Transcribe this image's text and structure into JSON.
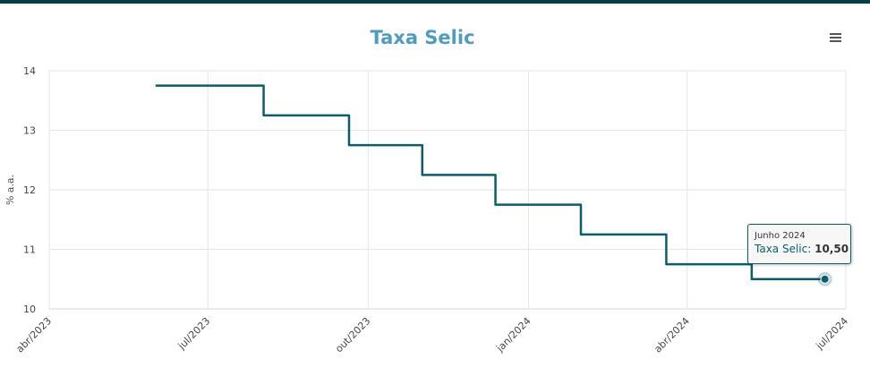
{
  "header": {
    "title": "Taxa Selic",
    "menu_icon": "hamburger-icon"
  },
  "colors": {
    "line": "#0b5c6d",
    "title": "#4e9cc0",
    "grid": "#e6e6e6",
    "top_bar": "#073b46"
  },
  "chart_data": {
    "type": "line",
    "step": true,
    "title": "Taxa Selic",
    "xlabel": "",
    "ylabel": "% a.a.",
    "xlim": [
      "2023-04-01",
      "2024-07-01"
    ],
    "ylim": [
      10,
      14
    ],
    "x_ticks": [
      {
        "date": "2023-04-01",
        "label": "abr/2023"
      },
      {
        "date": "2023-07-01",
        "label": "jul/2023"
      },
      {
        "date": "2023-10-01",
        "label": "out/2023"
      },
      {
        "date": "2024-01-01",
        "label": "jan/2024"
      },
      {
        "date": "2024-04-01",
        "label": "abr/2024"
      },
      {
        "date": "2024-07-01",
        "label": "jul/2024"
      }
    ],
    "y_ticks": [
      10,
      11,
      12,
      13,
      14
    ],
    "grid": true,
    "legend": "none",
    "series": [
      {
        "name": "Taxa Selic",
        "x": [
          "2023-06-01",
          "2023-08-02",
          "2023-09-20",
          "2023-11-01",
          "2023-12-13",
          "2024-01-31",
          "2024-03-20",
          "2024-05-08",
          "2024-06-19"
        ],
        "y": [
          13.75,
          13.25,
          12.75,
          12.25,
          11.75,
          11.25,
          10.75,
          10.5,
          10.5
        ]
      }
    ],
    "tooltip": {
      "date": "Junho 2024",
      "series": "Taxa Selic",
      "value": "10,50"
    }
  }
}
